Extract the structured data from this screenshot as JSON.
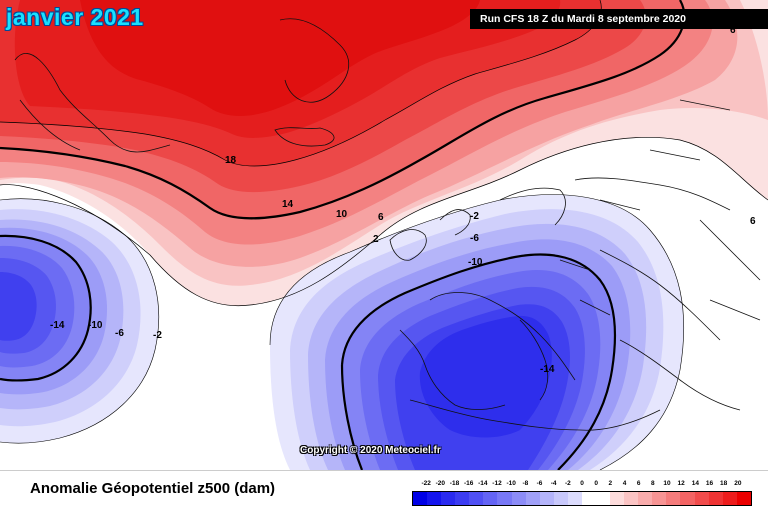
{
  "title": "janvier 2021",
  "run_info": "Run CFS 18 Z du Mardi 8 septembre 2020",
  "copyright": "Copyright © 2020 Meteociel.fr",
  "footer_label": "Anomalie Géopotentiel z500 (dam)",
  "contour_labels": [
    {
      "id": "pos-18",
      "text": "18"
    },
    {
      "id": "pos-14",
      "text": "14"
    },
    {
      "id": "pos-10",
      "text": "10"
    },
    {
      "id": "pos-6",
      "text": "6"
    },
    {
      "id": "pos-2",
      "text": "2"
    },
    {
      "id": "neg-2-n",
      "text": "-2"
    },
    {
      "id": "neg-6-n",
      "text": "-6"
    },
    {
      "id": "neg-10-n",
      "text": "-10"
    },
    {
      "id": "neg-14-e",
      "text": "-14"
    },
    {
      "id": "neg-14-w",
      "text": "-14"
    },
    {
      "id": "neg-10-w",
      "text": "-10"
    },
    {
      "id": "neg-6-w",
      "text": "-6"
    },
    {
      "id": "neg-2-w",
      "text": "-2"
    },
    {
      "id": "pos-6-e",
      "text": "6"
    },
    {
      "id": "pos-6-ne",
      "text": "6"
    }
  ],
  "scale": {
    "ticks": [
      "-22",
      "-20",
      "-18",
      "-16",
      "-14",
      "-12",
      "-10",
      "-8",
      "-6",
      "-4",
      "-2",
      "0",
      "0",
      "2",
      "4",
      "6",
      "8",
      "10",
      "12",
      "14",
      "16",
      "18",
      "20"
    ],
    "colors": [
      "#0000e6",
      "#1414ee",
      "#2a2af0",
      "#3c3cf2",
      "#5050f4",
      "#6464f5",
      "#7878f6",
      "#8c8cf7",
      "#a0a0f8",
      "#b4b4fa",
      "#c8c8fb",
      "#dcdcfd",
      "#ffffff",
      "#ffffff",
      "#fddcdc",
      "#fbc4c4",
      "#f9acac",
      "#f79494",
      "#f57c7c",
      "#f36464",
      "#f14c4c",
      "#ef3434",
      "#ed1c1c",
      "#eb0000"
    ]
  }
}
